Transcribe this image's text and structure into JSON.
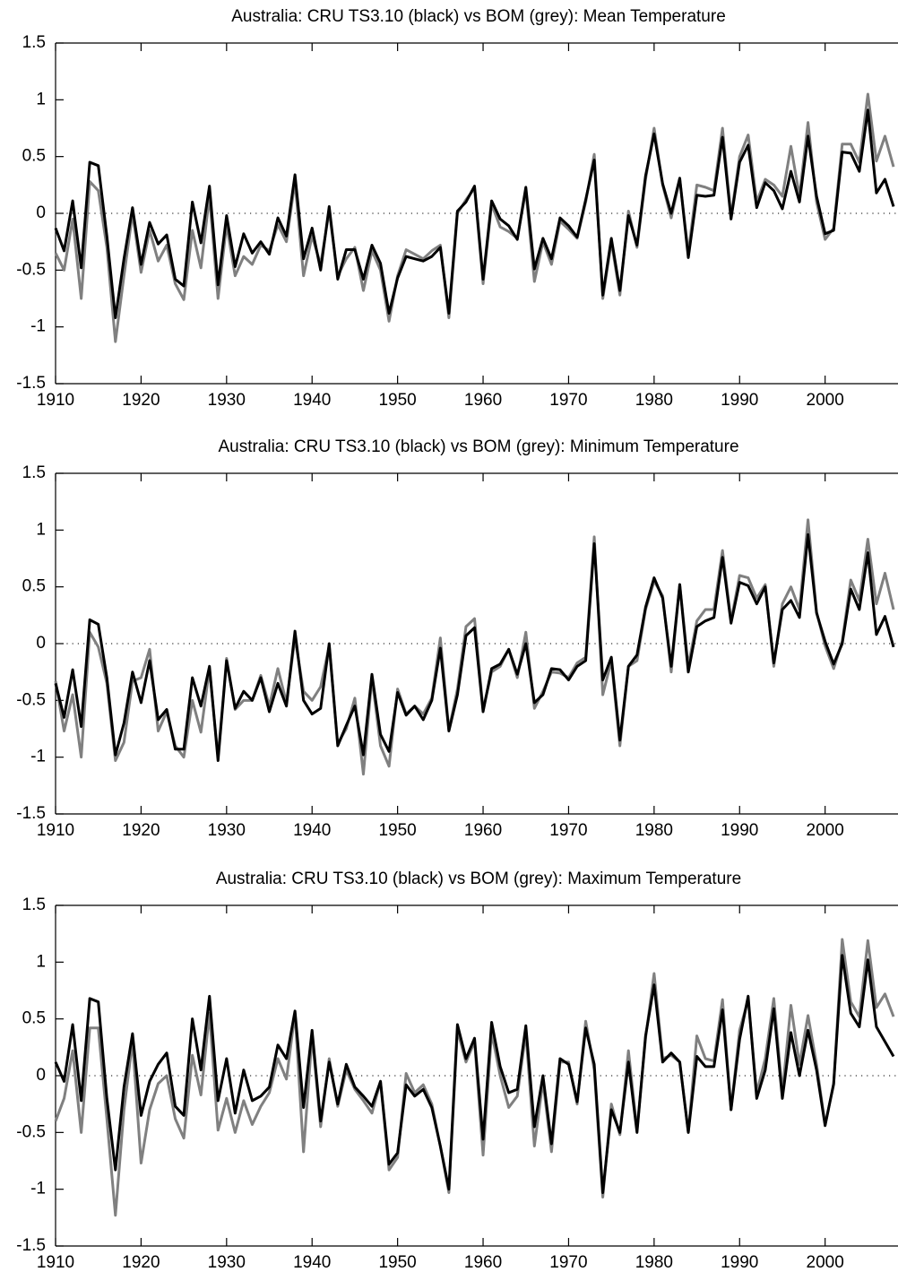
{
  "chart_data": [
    {
      "type": "line",
      "title": "Australia: CRU TS3.10 (black) vs BOM (grey): Mean Temperature",
      "x": [
        1910,
        1911,
        1912,
        1913,
        1914,
        1915,
        1916,
        1917,
        1918,
        1919,
        1920,
        1921,
        1922,
        1923,
        1924,
        1925,
        1926,
        1927,
        1928,
        1929,
        1930,
        1931,
        1932,
        1933,
        1934,
        1935,
        1936,
        1937,
        1938,
        1939,
        1940,
        1941,
        1942,
        1943,
        1944,
        1945,
        1946,
        1947,
        1948,
        1949,
        1950,
        1951,
        1952,
        1953,
        1954,
        1955,
        1956,
        1957,
        1958,
        1959,
        1960,
        1961,
        1962,
        1963,
        1964,
        1965,
        1966,
        1967,
        1968,
        1969,
        1970,
        1971,
        1972,
        1973,
        1974,
        1975,
        1976,
        1977,
        1978,
        1979,
        1980,
        1981,
        1982,
        1983,
        1984,
        1985,
        1986,
        1987,
        1988,
        1989,
        1990,
        1991,
        1992,
        1993,
        1994,
        1995,
        1996,
        1997,
        1998,
        1999,
        2000,
        2001,
        2002,
        2003,
        2004,
        2005,
        2006,
        2007,
        2008
      ],
      "series": [
        {
          "color": "#000000",
          "values": [
            -0.13,
            -0.33,
            0.11,
            -0.48,
            0.45,
            0.42,
            -0.2,
            -0.92,
            -0.4,
            0.05,
            -0.45,
            -0.08,
            -0.27,
            -0.19,
            -0.58,
            -0.64,
            0.1,
            -0.26,
            0.24,
            -0.63,
            -0.02,
            -0.47,
            -0.18,
            -0.35,
            -0.25,
            -0.36,
            -0.04,
            -0.2,
            0.34,
            -0.4,
            -0.13,
            -0.5,
            0.06,
            -0.58,
            -0.32,
            -0.32,
            -0.58,
            -0.28,
            -0.44,
            -0.88,
            -0.57,
            -0.38,
            -0.4,
            -0.42,
            -0.38,
            -0.3,
            -0.88,
            0.02,
            0.1,
            0.24,
            -0.58,
            0.11,
            -0.05,
            -0.11,
            -0.23,
            0.23,
            -0.49,
            -0.22,
            -0.4,
            -0.04,
            -0.11,
            -0.21,
            0.12,
            0.47,
            -0.72,
            -0.22,
            -0.68,
            -0.02,
            -0.28,
            0.33,
            0.7,
            0.26,
            0.0,
            0.31,
            -0.39,
            0.16,
            0.15,
            0.16,
            0.67,
            -0.05,
            0.45,
            0.6,
            0.05,
            0.27,
            0.2,
            0.04,
            0.37,
            0.1,
            0.68,
            0.15,
            -0.18,
            -0.15,
            0.54,
            0.53,
            0.37,
            0.91,
            0.18,
            0.3,
            0.06
          ]
        },
        {
          "color": "#808080",
          "values": [
            -0.35,
            -0.5,
            -0.05,
            -0.75,
            0.28,
            0.2,
            -0.3,
            -1.13,
            -0.55,
            0.0,
            -0.52,
            -0.15,
            -0.42,
            -0.28,
            -0.62,
            -0.76,
            -0.15,
            -0.48,
            0.15,
            -0.75,
            -0.1,
            -0.55,
            -0.38,
            -0.45,
            -0.28,
            -0.33,
            -0.1,
            -0.25,
            0.28,
            -0.55,
            -0.2,
            -0.45,
            0.02,
            -0.55,
            -0.4,
            -0.3,
            -0.68,
            -0.33,
            -0.5,
            -0.95,
            -0.55,
            -0.32,
            -0.36,
            -0.4,
            -0.33,
            -0.28,
            -0.92,
            0.0,
            0.12,
            0.22,
            -0.62,
            0.08,
            -0.12,
            -0.16,
            -0.22,
            0.2,
            -0.6,
            -0.25,
            -0.45,
            -0.07,
            -0.14,
            -0.22,
            0.1,
            0.52,
            -0.75,
            -0.25,
            -0.72,
            0.02,
            -0.3,
            0.3,
            0.75,
            0.25,
            -0.04,
            0.3,
            -0.35,
            0.25,
            0.23,
            0.2,
            0.75,
            -0.03,
            0.5,
            0.69,
            0.1,
            0.3,
            0.25,
            0.15,
            0.59,
            0.15,
            0.8,
            0.1,
            -0.23,
            -0.13,
            0.61,
            0.61,
            0.45,
            1.05,
            0.46,
            0.68,
            0.41
          ]
        }
      ],
      "xlim": [
        1910,
        2008
      ],
      "xticks": [
        1910,
        1920,
        1930,
        1940,
        1950,
        1960,
        1970,
        1980,
        1990,
        2000
      ],
      "ylim": [
        -1.5,
        1.5
      ],
      "yticks": [
        -1.5,
        -1,
        -0.5,
        0,
        0.5,
        1,
        1.5
      ],
      "grid": false
    },
    {
      "type": "line",
      "title": "Australia: CRU TS3.10 (black) vs BOM (grey): Minimum Temperature",
      "x": [
        1910,
        1911,
        1912,
        1913,
        1914,
        1915,
        1916,
        1917,
        1918,
        1919,
        1920,
        1921,
        1922,
        1923,
        1924,
        1925,
        1926,
        1927,
        1928,
        1929,
        1930,
        1931,
        1932,
        1933,
        1934,
        1935,
        1936,
        1937,
        1938,
        1939,
        1940,
        1941,
        1942,
        1943,
        1944,
        1945,
        1946,
        1947,
        1948,
        1949,
        1950,
        1951,
        1952,
        1953,
        1954,
        1955,
        1956,
        1957,
        1958,
        1959,
        1960,
        1961,
        1962,
        1963,
        1964,
        1965,
        1966,
        1967,
        1968,
        1969,
        1970,
        1971,
        1972,
        1973,
        1974,
        1975,
        1976,
        1977,
        1978,
        1979,
        1980,
        1981,
        1982,
        1983,
        1984,
        1985,
        1986,
        1987,
        1988,
        1989,
        1990,
        1991,
        1992,
        1993,
        1994,
        1995,
        1996,
        1997,
        1998,
        1999,
        2000,
        2001,
        2002,
        2003,
        2004,
        2005,
        2006,
        2007,
        2008
      ],
      "series": [
        {
          "color": "#000000",
          "values": [
            -0.35,
            -0.65,
            -0.23,
            -0.73,
            0.21,
            0.17,
            -0.3,
            -0.98,
            -0.7,
            -0.25,
            -0.52,
            -0.15,
            -0.67,
            -0.58,
            -0.93,
            -0.93,
            -0.3,
            -0.55,
            -0.2,
            -1.03,
            -0.15,
            -0.57,
            -0.42,
            -0.5,
            -0.3,
            -0.6,
            -0.35,
            -0.55,
            0.11,
            -0.5,
            -0.62,
            -0.57,
            0.0,
            -0.9,
            -0.72,
            -0.55,
            -0.98,
            -0.27,
            -0.8,
            -0.95,
            -0.43,
            -0.63,
            -0.55,
            -0.67,
            -0.5,
            -0.04,
            -0.77,
            -0.45,
            0.07,
            0.14,
            -0.6,
            -0.22,
            -0.18,
            -0.05,
            -0.27,
            0.0,
            -0.52,
            -0.45,
            -0.22,
            -0.23,
            -0.32,
            -0.2,
            -0.15,
            0.88,
            -0.32,
            -0.12,
            -0.85,
            -0.2,
            -0.1,
            0.32,
            0.58,
            0.4,
            -0.2,
            0.52,
            -0.25,
            0.15,
            0.2,
            0.23,
            0.76,
            0.18,
            0.54,
            0.51,
            0.35,
            0.5,
            -0.17,
            0.3,
            0.38,
            0.23,
            0.96,
            0.27,
            0.02,
            -0.18,
            0.0,
            0.48,
            0.3,
            0.8,
            0.08,
            0.24,
            -0.03
          ]
        },
        {
          "color": "#808080",
          "values": [
            -0.33,
            -0.77,
            -0.45,
            -1.0,
            0.1,
            -0.03,
            -0.35,
            -1.03,
            -0.87,
            -0.33,
            -0.3,
            -0.05,
            -0.77,
            -0.6,
            -0.9,
            -1.0,
            -0.5,
            -0.78,
            -0.22,
            -1.0,
            -0.13,
            -0.58,
            -0.5,
            -0.5,
            -0.28,
            -0.55,
            -0.22,
            -0.52,
            0.05,
            -0.42,
            -0.5,
            -0.38,
            -0.02,
            -0.88,
            -0.75,
            -0.48,
            -1.15,
            -0.3,
            -0.9,
            -1.08,
            -0.4,
            -0.62,
            -0.55,
            -0.62,
            -0.48,
            0.05,
            -0.76,
            -0.4,
            0.15,
            0.22,
            -0.58,
            -0.25,
            -0.2,
            -0.05,
            -0.3,
            0.1,
            -0.57,
            -0.42,
            -0.25,
            -0.26,
            -0.3,
            -0.17,
            -0.12,
            0.94,
            -0.45,
            -0.15,
            -0.9,
            -0.2,
            -0.15,
            0.3,
            0.55,
            0.42,
            -0.25,
            0.52,
            -0.2,
            0.2,
            0.3,
            0.3,
            0.82,
            0.2,
            0.6,
            0.58,
            0.4,
            0.52,
            -0.2,
            0.35,
            0.5,
            0.3,
            1.09,
            0.28,
            -0.02,
            -0.22,
            0.02,
            0.56,
            0.38,
            0.92,
            0.35,
            0.62,
            0.3
          ]
        }
      ],
      "xlim": [
        1910,
        2008
      ],
      "xticks": [
        1910,
        1920,
        1930,
        1940,
        1950,
        1960,
        1970,
        1980,
        1990,
        2000
      ],
      "ylim": [
        -1.5,
        1.5
      ],
      "yticks": [
        -1.5,
        -1,
        -0.5,
        0,
        0.5,
        1,
        1.5
      ],
      "grid": false
    },
    {
      "type": "line",
      "title": "Australia: CRU TS3.10 (black) vs BOM (grey): Maximum Temperature",
      "x": [
        1910,
        1911,
        1912,
        1913,
        1914,
        1915,
        1916,
        1917,
        1918,
        1919,
        1920,
        1921,
        1922,
        1923,
        1924,
        1925,
        1926,
        1927,
        1928,
        1929,
        1930,
        1931,
        1932,
        1933,
        1934,
        1935,
        1936,
        1937,
        1938,
        1939,
        1940,
        1941,
        1942,
        1943,
        1944,
        1945,
        1946,
        1947,
        1948,
        1949,
        1950,
        1951,
        1952,
        1953,
        1954,
        1955,
        1956,
        1957,
        1958,
        1959,
        1960,
        1961,
        1962,
        1963,
        1964,
        1965,
        1966,
        1967,
        1968,
        1969,
        1970,
        1971,
        1972,
        1973,
        1974,
        1975,
        1976,
        1977,
        1978,
        1979,
        1980,
        1981,
        1982,
        1983,
        1984,
        1985,
        1986,
        1987,
        1988,
        1989,
        1990,
        1991,
        1992,
        1993,
        1994,
        1995,
        1996,
        1997,
        1998,
        1999,
        2000,
        2001,
        2002,
        2003,
        2004,
        2005,
        2006,
        2007,
        2008
      ],
      "series": [
        {
          "color": "#000000",
          "values": [
            0.12,
            -0.05,
            0.45,
            -0.22,
            0.68,
            0.65,
            -0.2,
            -0.83,
            -0.1,
            0.37,
            -0.35,
            -0.05,
            0.1,
            0.2,
            -0.27,
            -0.35,
            0.5,
            0.05,
            0.7,
            -0.22,
            0.15,
            -0.33,
            0.05,
            -0.22,
            -0.18,
            -0.1,
            0.27,
            0.15,
            0.57,
            -0.28,
            0.4,
            -0.4,
            0.12,
            -0.25,
            0.1,
            -0.1,
            -0.18,
            -0.27,
            -0.05,
            -0.78,
            -0.68,
            -0.08,
            -0.18,
            -0.12,
            -0.28,
            -0.62,
            -1.0,
            0.45,
            0.15,
            0.33,
            -0.56,
            0.47,
            0.08,
            -0.15,
            -0.12,
            0.44,
            -0.45,
            0.0,
            -0.6,
            0.15,
            0.1,
            -0.23,
            0.42,
            0.1,
            -1.03,
            -0.3,
            -0.5,
            0.12,
            -0.5,
            0.35,
            0.8,
            0.12,
            0.2,
            0.12,
            -0.5,
            0.17,
            0.08,
            0.08,
            0.58,
            -0.3,
            0.32,
            0.7,
            -0.2,
            0.05,
            0.59,
            -0.2,
            0.38,
            0.0,
            0.4,
            0.05,
            -0.44,
            -0.07,
            1.06,
            0.55,
            0.43,
            1.02,
            0.43,
            0.3,
            0.17
          ]
        },
        {
          "color": "#808080",
          "values": [
            -0.4,
            -0.2,
            0.22,
            -0.5,
            0.42,
            0.42,
            -0.38,
            -1.23,
            -0.3,
            0.3,
            -0.77,
            -0.3,
            -0.07,
            0.0,
            -0.38,
            -0.55,
            0.18,
            -0.17,
            0.55,
            -0.48,
            -0.2,
            -0.5,
            -0.22,
            -0.43,
            -0.27,
            -0.15,
            0.15,
            -0.03,
            0.55,
            -0.67,
            0.35,
            -0.45,
            0.15,
            -0.27,
            0.05,
            -0.12,
            -0.22,
            -0.33,
            -0.05,
            -0.83,
            -0.72,
            0.02,
            -0.15,
            -0.08,
            -0.25,
            -0.62,
            -1.03,
            0.4,
            0.12,
            0.3,
            -0.7,
            0.38,
            0.0,
            -0.28,
            -0.18,
            0.38,
            -0.62,
            -0.05,
            -0.67,
            0.12,
            0.12,
            -0.25,
            0.48,
            0.05,
            -1.07,
            -0.25,
            -0.52,
            0.22,
            -0.48,
            0.33,
            0.9,
            0.15,
            0.18,
            0.12,
            -0.5,
            0.35,
            0.15,
            0.13,
            0.67,
            -0.3,
            0.4,
            0.67,
            -0.15,
            0.15,
            0.68,
            -0.15,
            0.62,
            0.1,
            0.53,
            0.1,
            -0.43,
            -0.08,
            1.2,
            0.65,
            0.52,
            1.19,
            0.6,
            0.72,
            0.52
          ]
        }
      ],
      "xlim": [
        1910,
        2008
      ],
      "xticks": [
        1910,
        1920,
        1930,
        1940,
        1950,
        1960,
        1970,
        1980,
        1990,
        2000
      ],
      "ylim": [
        -1.5,
        1.5
      ],
      "yticks": [
        -1.5,
        -1,
        -0.5,
        0,
        0.5,
        1,
        1.5
      ],
      "grid": false
    }
  ]
}
